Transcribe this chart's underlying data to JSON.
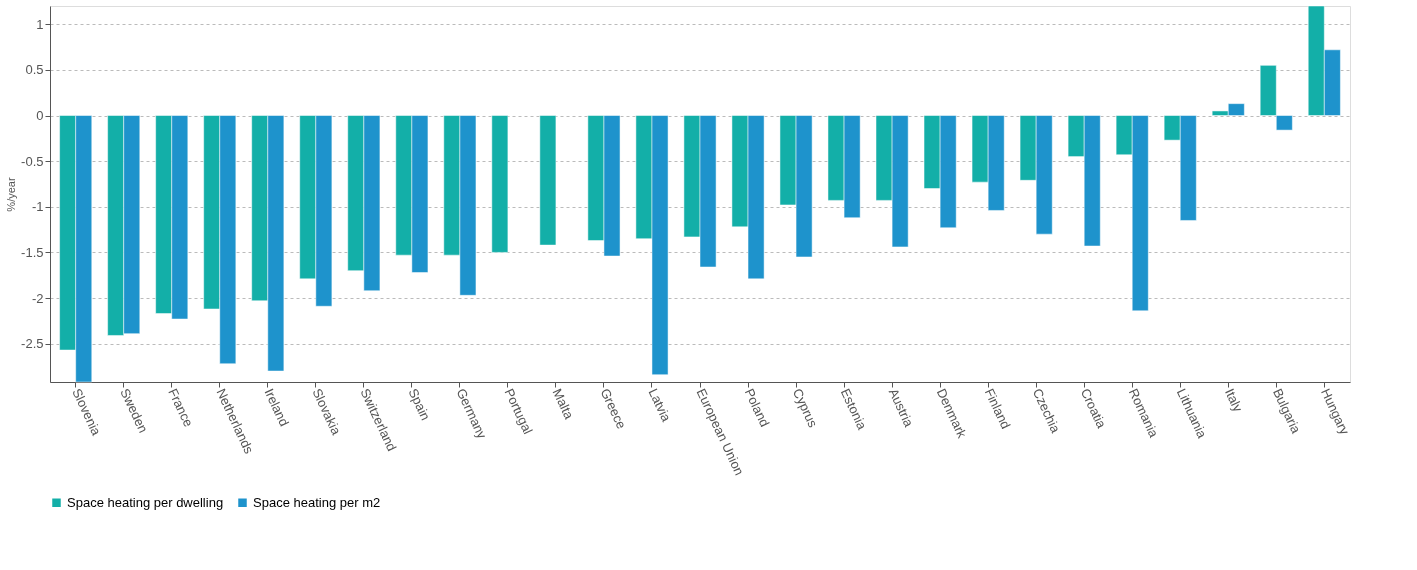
{
  "chart_data": {
    "type": "bar",
    "ylabel": "%/year",
    "categories": [
      "Slovenia",
      "Sweden",
      "France",
      "Netherlands",
      "Ireland",
      "Slovakia",
      "Switzerland",
      "Spain",
      "Germany",
      "Portugal",
      "Malta",
      "Greece",
      "Latvia",
      "European Union",
      "Poland",
      "Cyprus",
      "Estonia",
      "Austria",
      "Denmark",
      "Finland",
      "Czechia",
      "Croatia",
      "Romania",
      "Lithuania",
      "Italy",
      "Bulgaria",
      "Hungary"
    ],
    "series": [
      {
        "name": "Space heating per dwelling",
        "color": "#13afa8",
        "values": [
          -2.57,
          -2.41,
          -2.17,
          -2.12,
          -2.03,
          -1.79,
          -1.7,
          -1.53,
          -1.53,
          -1.5,
          -1.42,
          -1.37,
          -1.35,
          -1.33,
          -1.22,
          -0.98,
          -0.93,
          -0.93,
          -0.8,
          -0.73,
          -0.71,
          -0.45,
          -0.43,
          -0.27,
          0.05,
          0.55,
          1.2
        ]
      },
      {
        "name": "Space heating per m2",
        "color": "#1e93cc",
        "values": [
          -2.92,
          -2.39,
          -2.23,
          -2.72,
          -2.8,
          -2.09,
          -1.92,
          -1.72,
          -1.97,
          null,
          null,
          -1.54,
          -2.84,
          -1.66,
          -1.79,
          -1.55,
          -1.12,
          -1.44,
          -1.23,
          -1.04,
          -1.3,
          -1.43,
          -2.14,
          -1.15,
          0.13,
          -0.16,
          0.72
        ]
      }
    ],
    "ylim": [
      -2.92,
      1.2
    ],
    "yticks": [
      -2.5,
      -2,
      -1.5,
      -1,
      -0.5,
      0,
      0.5,
      1
    ],
    "grid": "y",
    "legend": "bottom"
  }
}
